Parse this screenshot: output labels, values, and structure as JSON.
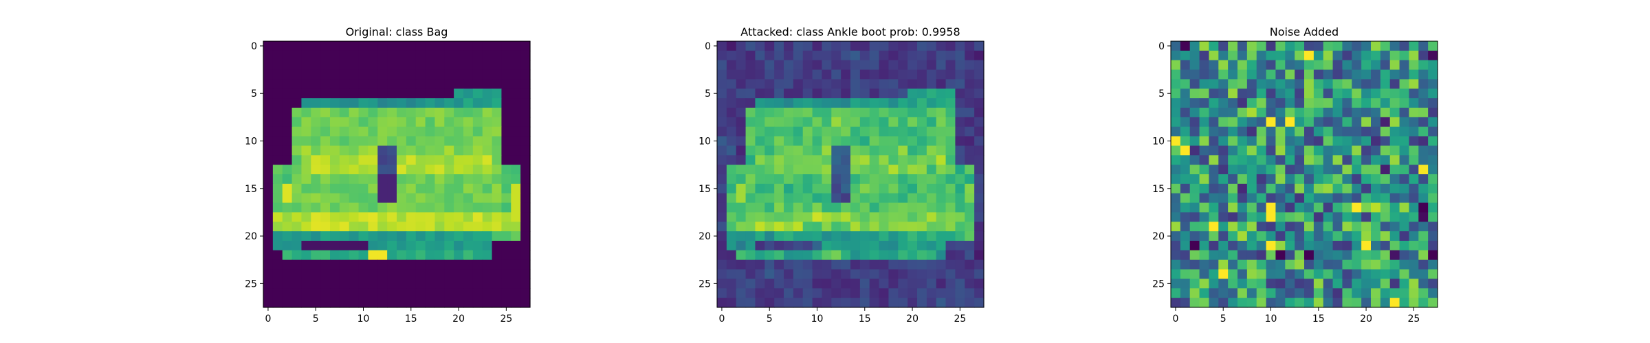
{
  "figure": {
    "panels": [
      {
        "title": "Original: class Bag"
      },
      {
        "title": "Attacked: class Ankle boot prob: 0.9958"
      },
      {
        "title": "Noise Added"
      }
    ]
  },
  "chart_data": [
    {
      "type": "heatmap",
      "title": "Original: class Bag",
      "colormap": "viridis",
      "grid": false,
      "xlim": [
        -0.5,
        27.5
      ],
      "ylim": [
        27.5,
        -0.5
      ],
      "xticks": [
        0,
        5,
        10,
        15,
        20,
        25
      ],
      "yticks": [
        0,
        5,
        10,
        15,
        20,
        25
      ],
      "tick_labels": [
        "0",
        "5",
        "10",
        "15",
        "20",
        "25"
      ],
      "shape": [
        28,
        28
      ],
      "note_values": "pixel intensities are approximate (0 = dark purple, 1 = yellow)"
    },
    {
      "type": "heatmap",
      "title": "Attacked: class Ankle boot prob: 0.9958",
      "colormap": "viridis",
      "grid": false,
      "xlim": [
        -0.5,
        27.5
      ],
      "ylim": [
        27.5,
        -0.5
      ],
      "xticks": [
        0,
        5,
        10,
        15,
        20,
        25
      ],
      "yticks": [
        0,
        5,
        10,
        15,
        20,
        25
      ],
      "tick_labels": [
        "0",
        "5",
        "10",
        "15",
        "20",
        "25"
      ],
      "shape": [
        28,
        28
      ]
    },
    {
      "type": "heatmap",
      "title": "Noise Added",
      "colormap": "viridis",
      "grid": false,
      "xlim": [
        -0.5,
        27.5
      ],
      "ylim": [
        27.5,
        -0.5
      ],
      "xticks": [
        0,
        5,
        10,
        15,
        20,
        25
      ],
      "yticks": [
        0,
        5,
        10,
        15,
        20,
        25
      ],
      "tick_labels": [
        "0",
        "5",
        "10",
        "15",
        "20",
        "25"
      ],
      "shape": [
        28,
        28
      ]
    }
  ],
  "colors": {
    "viridis_low": "#440154",
    "viridis_mid": "#21918c",
    "viridis_high": "#fde725",
    "axes_edge": "#000000"
  }
}
